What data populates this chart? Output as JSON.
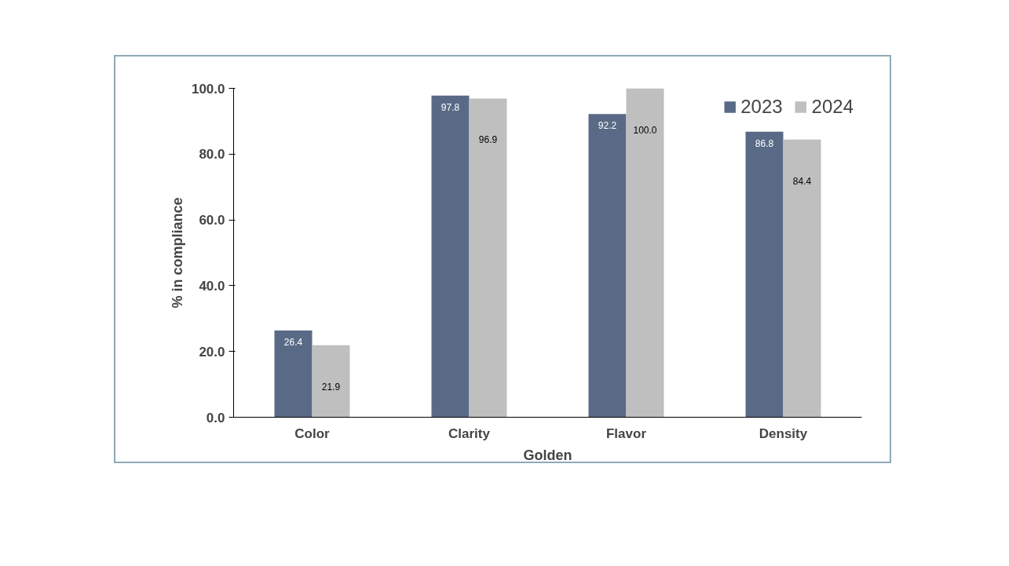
{
  "chart_data": {
    "type": "bar",
    "xlabel": "Golden",
    "ylabel": "% in compliance",
    "categories": [
      "Color",
      "Clarity",
      "Flavor",
      "Density"
    ],
    "series": [
      {
        "name": "2023",
        "color": "#596a86",
        "values": [
          26.4,
          97.8,
          92.2,
          86.8
        ],
        "value_labels": [
          "26.4",
          "97.8",
          "92.2",
          "86.8"
        ]
      },
      {
        "name": "2024",
        "color": "#bfbfbf",
        "values": [
          21.9,
          96.9,
          100.0,
          84.4
        ],
        "value_labels": [
          "21.9",
          "96.9",
          "100.0",
          "84.4"
        ]
      }
    ],
    "ylim": [
      0,
      100
    ],
    "yticks": [
      {
        "value": 0,
        "label": "0.0"
      },
      {
        "value": 20,
        "label": "20.0"
      },
      {
        "value": 40,
        "label": "40.0"
      },
      {
        "value": 60,
        "label": "60.0"
      },
      {
        "value": 80,
        "label": "80.0"
      },
      {
        "value": 100,
        "label": "100.0"
      }
    ],
    "legend": "top right",
    "grid": false
  }
}
